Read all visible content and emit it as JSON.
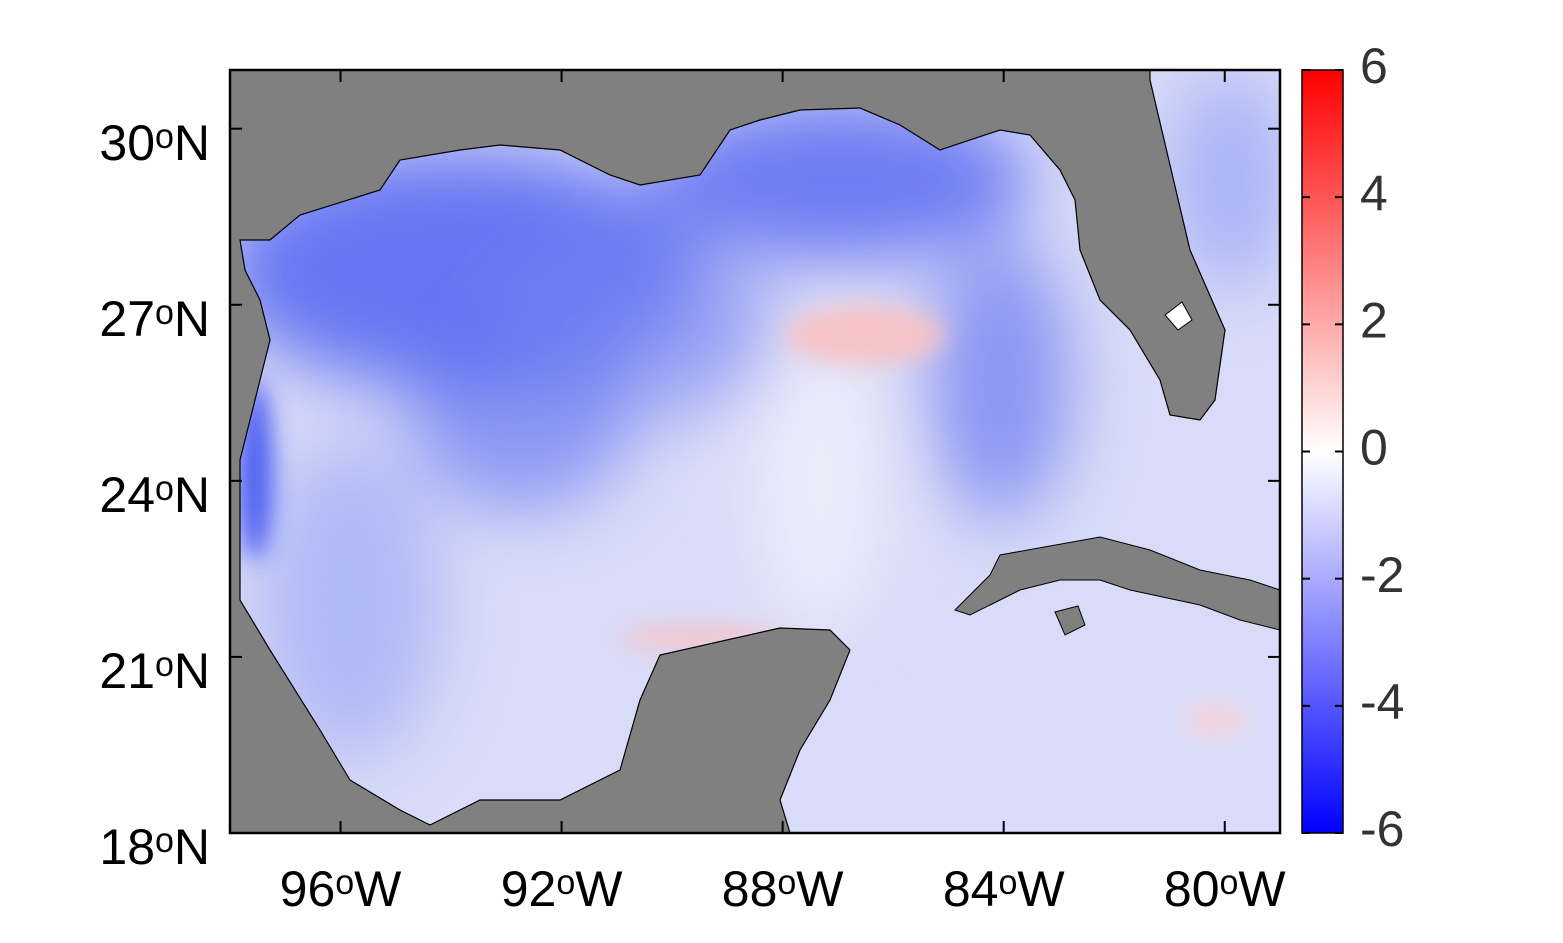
{
  "map": {
    "xlim": [
      -98,
      -79
    ],
    "ylim": [
      18,
      31
    ],
    "xticks": [
      {
        "value": -96,
        "label": "96ᵒW"
      },
      {
        "value": -92,
        "label": "92ᵒW"
      },
      {
        "value": -88,
        "label": "88ᵒW"
      },
      {
        "value": -84,
        "label": "84ᵒW"
      },
      {
        "value": -80,
        "label": "80ᵒW"
      }
    ],
    "yticks": [
      {
        "value": 18,
        "label": "18ᵒN"
      },
      {
        "value": 21,
        "label": "21ᵒN"
      },
      {
        "value": 24,
        "label": "24ᵒN"
      },
      {
        "value": 27,
        "label": "27ᵒN"
      },
      {
        "value": 30,
        "label": "30ᵒN"
      }
    ],
    "colorbar": {
      "lim": [
        -6,
        6
      ],
      "ticks": [
        -6,
        -4,
        -2,
        0,
        2,
        4,
        6
      ],
      "colors": [
        "#0000ff",
        "#ffffff",
        "#ff0000"
      ]
    }
  }
}
